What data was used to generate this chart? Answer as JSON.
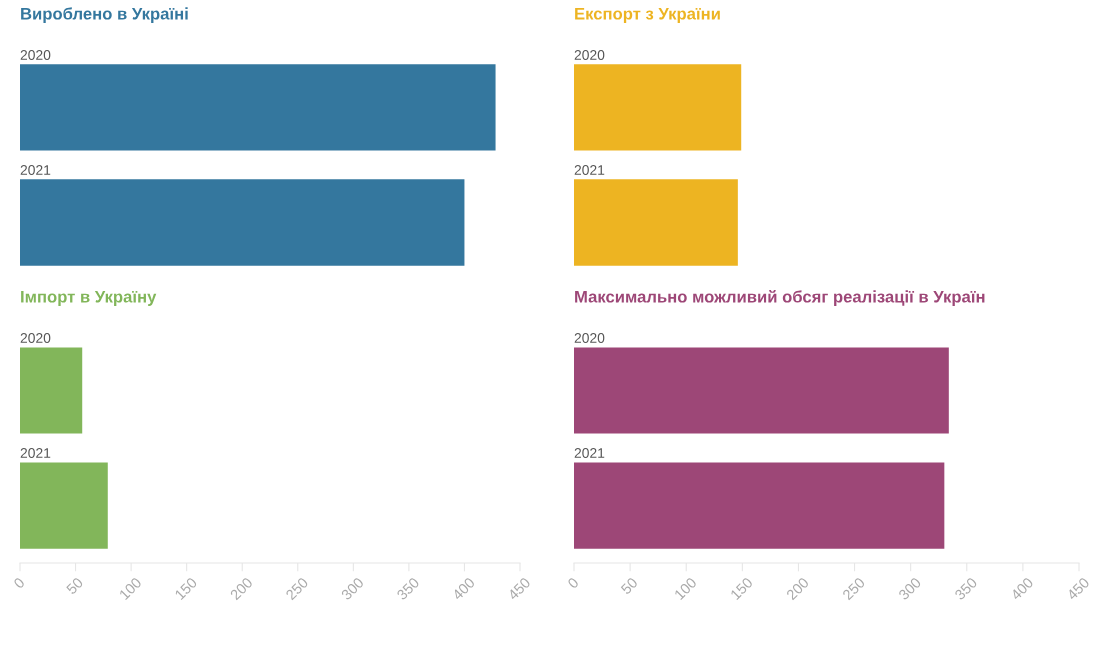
{
  "chart_data": [
    {
      "type": "bar",
      "orientation": "horizontal",
      "title": "Вироблено в Україні",
      "categories": [
        "2020",
        "2021"
      ],
      "values": [
        428,
        400
      ],
      "color": "#34779e",
      "xlim": [
        0,
        450
      ],
      "xticks": [
        0,
        50,
        100,
        150,
        200,
        250,
        300,
        350,
        400,
        450
      ],
      "tick_labels": false,
      "grid": false,
      "legend": false
    },
    {
      "type": "bar",
      "orientation": "horizontal",
      "title": "Експорт з України",
      "categories": [
        "2020",
        "2021"
      ],
      "values": [
        149,
        146
      ],
      "color": "#edb422",
      "xlim": [
        0,
        450
      ],
      "xticks": [
        0,
        50,
        100,
        150,
        200,
        250,
        300,
        350,
        400,
        450
      ],
      "tick_labels": false,
      "grid": false,
      "legend": false
    },
    {
      "type": "bar",
      "orientation": "horizontal",
      "title": "Імпорт в Україну",
      "categories": [
        "2020",
        "2021"
      ],
      "values": [
        56,
        79
      ],
      "color": "#82b65a",
      "xlim": [
        0,
        450
      ],
      "xticks": [
        0,
        50,
        100,
        150,
        200,
        250,
        300,
        350,
        400,
        450
      ],
      "tick_labels": "x",
      "grid": false,
      "legend": false
    },
    {
      "type": "bar",
      "orientation": "horizontal",
      "title": "Максимально можливий обсяг реалізації в Україн",
      "categories": [
        "2020",
        "2021"
      ],
      "values": [
        334,
        330
      ],
      "color": "#9d4777",
      "xlim": [
        0,
        450
      ],
      "xticks": [
        0,
        50,
        100,
        150,
        200,
        250,
        300,
        350,
        400,
        450
      ],
      "tick_labels": "x",
      "grid": false,
      "legend": false
    }
  ]
}
